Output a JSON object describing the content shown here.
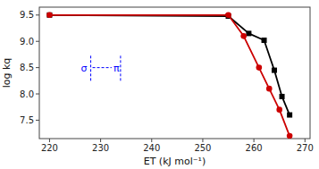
{
  "chart_data": {
    "type": "line",
    "xlabel": "ET (kJ mol⁻¹)",
    "ylabel": "log kq",
    "series": [
      {
        "color": "#000000",
        "marker": "square",
        "line_style": "solid",
        "x": [
          220,
          255,
          259,
          262,
          264,
          265.5,
          267
        ],
        "values": [
          9.5,
          9.48,
          9.15,
          9.02,
          8.45,
          7.95,
          7.6
        ]
      },
      {
        "color": "#cc0000",
        "marker": "circle",
        "line_style": "solid",
        "x": [
          220,
          255,
          258,
          261,
          263,
          265,
          267
        ],
        "values": [
          9.5,
          9.5,
          9.1,
          8.5,
          8.1,
          7.7,
          7.2
        ]
      }
    ],
    "xlim": [
      218,
      271
    ],
    "ylim": [
      7.15,
      9.65
    ],
    "xticks": [
      220,
      230,
      240,
      250,
      260,
      270
    ],
    "yticks": [
      7.5,
      {
        "value": 8.0,
        "label": "8.0"
      },
      8.5,
      {
        "value": 9.0,
        "label": "9.0"
      },
      9.5
    ],
    "grid": false,
    "annotations": [
      {
        "text": "σ",
        "color": "blue"
      },
      {
        "text": "π",
        "color": "blue"
      }
    ]
  }
}
